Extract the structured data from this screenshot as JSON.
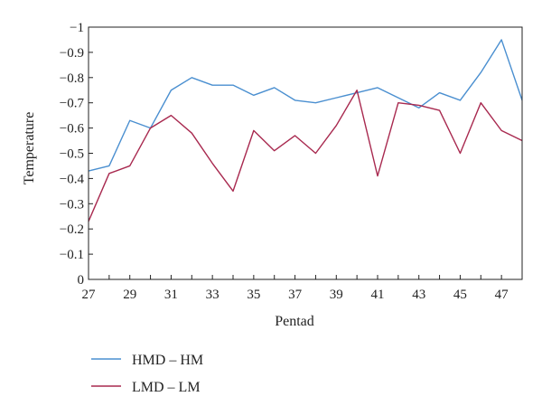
{
  "chart_data": {
    "type": "line",
    "title": "",
    "xlabel": "Pentad",
    "ylabel": "Temperature",
    "x": [
      27,
      28,
      29,
      30,
      31,
      32,
      33,
      34,
      35,
      36,
      37,
      38,
      39,
      40,
      41,
      42,
      43,
      44,
      45,
      46,
      47,
      48
    ],
    "xticks": [
      "27",
      "29",
      "31",
      "33",
      "35",
      "37",
      "39",
      "41",
      "43",
      "45",
      "47"
    ],
    "xtick_values": [
      27,
      29,
      31,
      33,
      35,
      37,
      39,
      41,
      43,
      45,
      47
    ],
    "xlim": [
      27,
      48
    ],
    "ylim": [
      0,
      -1
    ],
    "yticks": [
      "0",
      "−0.1",
      "−0.2",
      "−0.3",
      "−0.4",
      "−0.5",
      "−0.6",
      "−0.7",
      "−0.8",
      "−0.9",
      "−1"
    ],
    "ytick_values": [
      0,
      -0.1,
      -0.2,
      -0.3,
      -0.4,
      -0.5,
      -0.6,
      -0.7,
      -0.8,
      -0.9,
      -1
    ],
    "grid": false,
    "legend_position": "bottom-left",
    "series": [
      {
        "name": "HMD – HM",
        "color": "#4a8fd0",
        "values": [
          -0.43,
          -0.45,
          -0.63,
          -0.6,
          -0.75,
          -0.8,
          -0.77,
          -0.77,
          -0.73,
          -0.76,
          -0.71,
          -0.7,
          -0.72,
          -0.74,
          -0.76,
          -0.72,
          -0.68,
          -0.74,
          -0.71,
          -0.82,
          -0.95,
          -0.71
        ]
      },
      {
        "name": "LMD – LM",
        "color": "#a8294f",
        "values": [
          -0.23,
          -0.42,
          -0.45,
          -0.6,
          -0.65,
          -0.58,
          -0.46,
          -0.35,
          -0.59,
          -0.51,
          -0.57,
          -0.5,
          -0.61,
          -0.75,
          -0.41,
          -0.7,
          -0.69,
          -0.67,
          -0.5,
          -0.7,
          -0.59,
          -0.55
        ]
      }
    ]
  }
}
